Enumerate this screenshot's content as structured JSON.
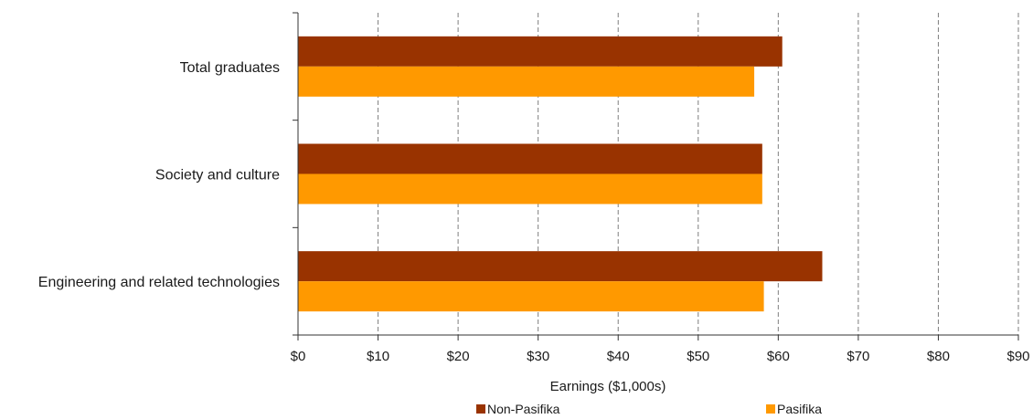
{
  "chart_data": {
    "type": "bar",
    "orientation": "horizontal",
    "categories": [
      "Total graduates",
      "Society and culture",
      "Engineering and related technologies"
    ],
    "series": [
      {
        "name": "Non-Pasifika",
        "color": "#993300",
        "values": [
          60.5,
          58.0,
          65.5
        ]
      },
      {
        "name": "Pasifika",
        "color": "#FF9900",
        "values": [
          57.0,
          58.0,
          58.2
        ]
      }
    ],
    "x_ticks": [
      "$0",
      "$10",
      "$20",
      "$30",
      "$40",
      "$50",
      "$60",
      "$70",
      "$80",
      "$90"
    ],
    "xlim": [
      0,
      90
    ],
    "xlabel": "Earnings ($1,000s)",
    "ylabel": "",
    "title": "",
    "grid": "vertical dashed",
    "legend_position": "bottom"
  }
}
